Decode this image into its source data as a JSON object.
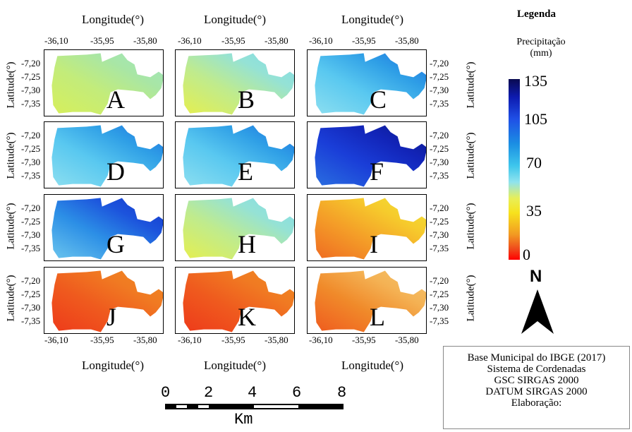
{
  "legend": {
    "title": "Legenda",
    "variable": "Precipitação",
    "unit": "(mm)",
    "colorbar_values": [
      "135",
      "105",
      "70",
      "35",
      "0"
    ],
    "colorbar_range": [
      0,
      135
    ]
  },
  "axes": {
    "longitude_label": "Longitude(°)",
    "latitude_label": "Latitude(°)",
    "longitude_ticks": [
      "-36,10",
      "-35,95",
      "-35,80"
    ],
    "latitude_ticks": [
      "-7,20",
      "-7,25",
      "-7,30",
      "-7,35"
    ]
  },
  "panels": [
    {
      "label": "A",
      "palette": "yellow-green"
    },
    {
      "label": "B",
      "palette": "yellow-cyan"
    },
    {
      "label": "C",
      "palette": "cyan-blue"
    },
    {
      "label": "D",
      "palette": "cyan-blue"
    },
    {
      "label": "E",
      "palette": "cyan-blue"
    },
    {
      "label": "F",
      "palette": "deep-blue"
    },
    {
      "label": "G",
      "palette": "deep-blue-light"
    },
    {
      "label": "H",
      "palette": "yellow-cyan"
    },
    {
      "label": "I",
      "palette": "orange-yellow"
    },
    {
      "label": "J",
      "palette": "red-orange"
    },
    {
      "label": "K",
      "palette": "red-orange"
    },
    {
      "label": "L",
      "palette": "orange-light"
    }
  ],
  "north_arrow": "N",
  "scale_bar": {
    "ticks": [
      "0",
      "2",
      "4",
      "6",
      "8"
    ],
    "unit": "Km"
  },
  "info": {
    "line1": "Base Municipal do IBGE (2017)",
    "line2": "Sistema de Cordenadas",
    "line3": "GSC SIRGAS 2000",
    "line4": "DATUM SIRGAS 2000",
    "line5": "Elaboração:"
  }
}
